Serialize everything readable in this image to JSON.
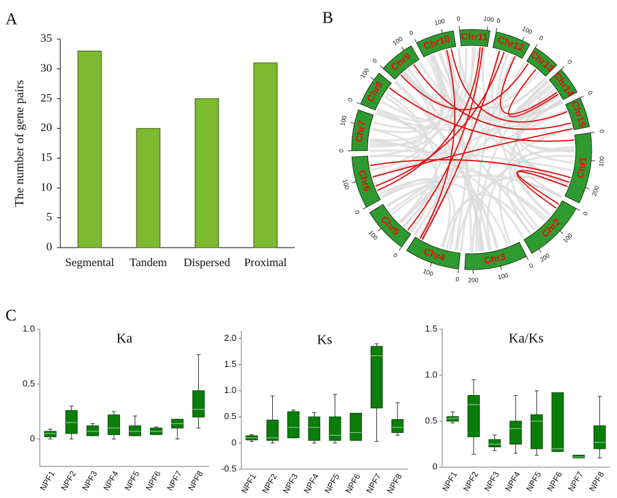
{
  "panel_labels": [
    "A",
    "B",
    "C"
  ],
  "chart_data": [
    {
      "type": "bar",
      "y_label": "The number of gene pairs",
      "categories": [
        "Segmental",
        "Tandem",
        "Dispersed",
        "Proximal"
      ],
      "values": [
        33,
        20,
        25,
        31
      ],
      "color": "#7dba2f",
      "ylim": [
        0,
        35
      ],
      "yticks": [
        0,
        5,
        10,
        15,
        20,
        25,
        30,
        35
      ]
    },
    {
      "type": "circos",
      "color": "#2f9a2f",
      "link_color": "#e01010",
      "chromosomes": [
        {
          "name": "Chr1",
          "length": 260,
          "ticks": [
            0,
            100,
            200
          ]
        },
        {
          "name": "Chr2",
          "length": 230,
          "ticks": [
            0,
            100,
            200
          ]
        },
        {
          "name": "Chr3",
          "length": 230,
          "ticks": [
            0,
            100,
            200
          ]
        },
        {
          "name": "Chr4",
          "length": 200,
          "ticks": [
            0,
            100
          ]
        },
        {
          "name": "Chr5",
          "length": 170,
          "ticks": [
            0,
            100
          ]
        },
        {
          "name": "Chr6",
          "length": 190,
          "ticks": [
            0,
            100
          ]
        },
        {
          "name": "Chr7",
          "length": 150,
          "ticks": [
            0,
            100
          ]
        },
        {
          "name": "Chr8",
          "length": 130,
          "ticks": [
            0,
            100
          ]
        },
        {
          "name": "Chr9",
          "length": 130,
          "ticks": [
            0,
            100
          ]
        },
        {
          "name": "Chr10",
          "length": 140,
          "ticks": [
            0,
            100
          ]
        },
        {
          "name": "Chr11",
          "length": 110,
          "ticks": [
            0,
            100
          ]
        },
        {
          "name": "Chr12",
          "length": 130,
          "ticks": [
            0,
            100
          ]
        },
        {
          "name": "Chr13",
          "length": 100,
          "ticks": [
            0
          ]
        },
        {
          "name": "Chr14",
          "length": 100,
          "ticks": [
            0
          ]
        },
        {
          "name": "Chr15",
          "length": 110,
          "ticks": [
            0
          ]
        }
      ],
      "links": [
        [
          10,
          80,
          5,
          40
        ],
        [
          10,
          90,
          4,
          20
        ],
        [
          9,
          120,
          14,
          30
        ],
        [
          9,
          100,
          3,
          180
        ],
        [
          11,
          30,
          3,
          170
        ],
        [
          11,
          50,
          5,
          60
        ],
        [
          11,
          100,
          13,
          60
        ],
        [
          12,
          50,
          13,
          70
        ],
        [
          8,
          30,
          12,
          10
        ],
        [
          8,
          100,
          14,
          80
        ],
        [
          14,
          105,
          5,
          100
        ],
        [
          0,
          20,
          7,
          110
        ],
        [
          0,
          180,
          5,
          150
        ],
        [
          1,
          20,
          0,
          220
        ],
        [
          1,
          40,
          0,
          200
        ]
      ]
    },
    {
      "type": "box",
      "title": "Ka",
      "color": "#0a7d0a",
      "categories": [
        "NPF1",
        "NPF2",
        "NPF3",
        "NPF4",
        "NPF5",
        "NPF6",
        "NPF7",
        "NPF8"
      ],
      "min": [
        0,
        0,
        0.03,
        0,
        0.03,
        0.04,
        0,
        0.1
      ],
      "q1": [
        0.02,
        0.05,
        0.03,
        0.04,
        0.03,
        0.04,
        0.1,
        0.2
      ],
      "median": [
        0.05,
        0.15,
        0.07,
        0.1,
        0.07,
        0.07,
        0.14,
        0.27
      ],
      "q3": [
        0.07,
        0.26,
        0.12,
        0.22,
        0.12,
        0.1,
        0.18,
        0.44
      ],
      "max": [
        0.09,
        0.3,
        0.14,
        0.25,
        0.21,
        0.11,
        0.18,
        0.77
      ],
      "ylim": [
        -0.25,
        1.0
      ],
      "yticks": [
        0,
        0.5,
        {
          "value": 1,
          "label": "1.0"
        }
      ]
    },
    {
      "type": "box",
      "title": "Ks",
      "color": "#0a7d0a",
      "categories": [
        "NPF1",
        "NPF2",
        "NPF3",
        "NPF4",
        "NPF5",
        "NPF6",
        "NPF7",
        "NPF8"
      ],
      "min": [
        0.03,
        0,
        0.1,
        0,
        0,
        0.05,
        0.03,
        0.15
      ],
      "q1": [
        0.06,
        0.05,
        0.1,
        0.05,
        0.05,
        0.05,
        0.67,
        0.2
      ],
      "median": [
        0.1,
        0.1,
        0.3,
        0.3,
        0.15,
        0.2,
        1.67,
        0.3
      ],
      "q3": [
        0.14,
        0.44,
        0.6,
        0.5,
        0.5,
        0.57,
        1.85,
        0.45
      ],
      "max": [
        0.16,
        0.9,
        0.63,
        0.58,
        0.93,
        0.57,
        1.9,
        0.77
      ],
      "ylim": [
        -0.5,
        2.15
      ],
      "yticks": [
        -0.5,
        0,
        0.5,
        {
          "value": 1,
          "label": "1.0"
        },
        1.5,
        {
          "value": 2,
          "label": "2.0"
        }
      ]
    },
    {
      "type": "box",
      "title": "Ka/Ks",
      "color": "#0a7d0a",
      "categories": [
        "NPF1",
        "NPF2",
        "NPF3",
        "NPF4",
        "NPF5",
        "NPF6",
        "NPF7",
        "NPF8"
      ],
      "min": [
        0.48,
        0.14,
        0.18,
        0.15,
        0.13,
        0.17,
        0.1,
        0.1
      ],
      "q1": [
        0.5,
        0.33,
        0.22,
        0.25,
        0.2,
        0.17,
        0.1,
        0.2
      ],
      "median": [
        0.53,
        0.68,
        0.25,
        0.42,
        0.5,
        0.2,
        0.11,
        0.27
      ],
      "q3": [
        0.55,
        0.78,
        0.3,
        0.5,
        0.57,
        0.81,
        0.13,
        0.45
      ],
      "max": [
        0.6,
        0.95,
        0.35,
        0.78,
        0.83,
        0.81,
        0.13,
        0.77
      ],
      "ylim": [
        0,
        1.5
      ],
      "yticks": [
        0,
        0.5,
        {
          "value": 1,
          "label": "1.0"
        },
        1.5
      ]
    }
  ]
}
